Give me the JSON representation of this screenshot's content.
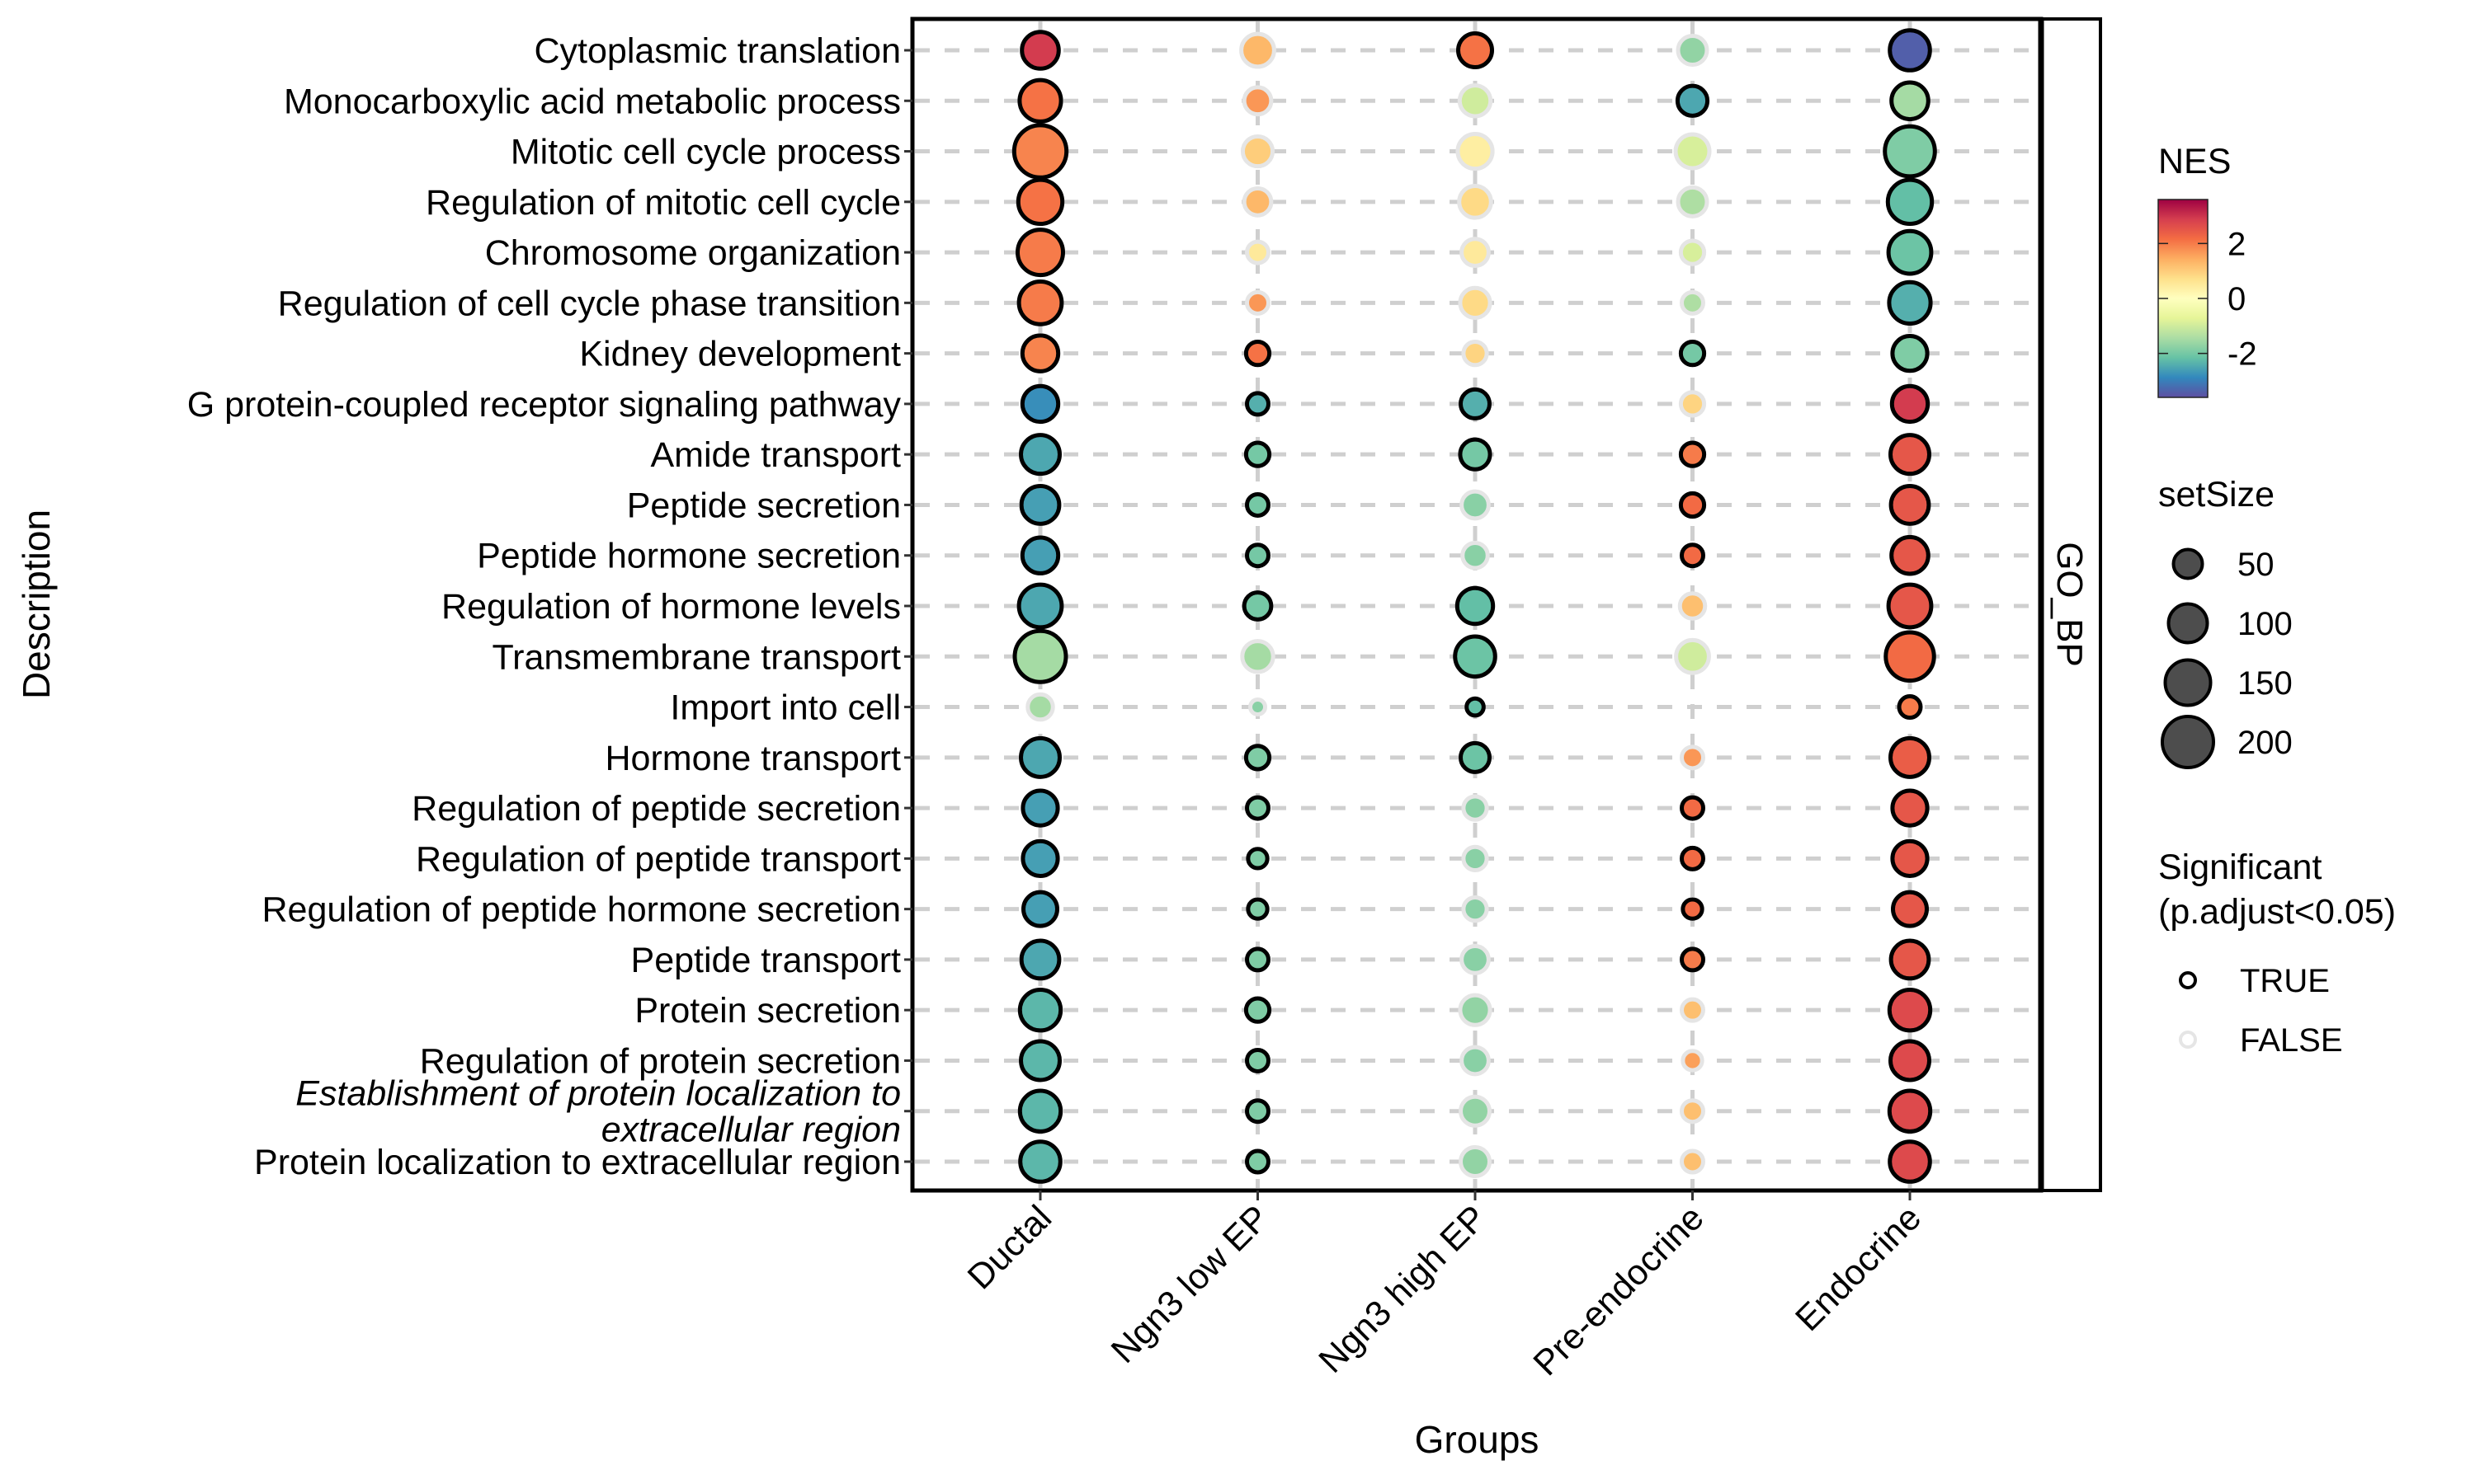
{
  "chart_data": {
    "type": "scatter",
    "subtype": "dot-plot",
    "title": "",
    "xlabel": "Groups",
    "ylabel": "Description",
    "facet_label": "GO_BP",
    "grid": "dashed major gridlines",
    "x_categories": [
      "Ductal",
      "Ngn3 low EP",
      "Ngn3 high EP",
      "Pre-endocrine",
      "Endocrine"
    ],
    "y_categories": [
      {
        "label": "Cytoplasmic translation",
        "italic": false
      },
      {
        "label": "Monocarboxylic acid metabolic process",
        "italic": false
      },
      {
        "label": "Mitotic cell cycle process",
        "italic": false
      },
      {
        "label": "Regulation of mitotic cell cycle",
        "italic": false
      },
      {
        "label": "Chromosome organization",
        "italic": false
      },
      {
        "label": "Regulation of cell cycle phase transition",
        "italic": false
      },
      {
        "label": "Kidney development",
        "italic": false
      },
      {
        "label": "G protein-coupled receptor signaling pathway",
        "italic": false
      },
      {
        "label": "Amide transport",
        "italic": false
      },
      {
        "label": "Peptide secretion",
        "italic": false
      },
      {
        "label": "Peptide hormone secretion",
        "italic": false
      },
      {
        "label": "Regulation of hormone levels",
        "italic": false
      },
      {
        "label": "Transmembrane transport",
        "italic": false
      },
      {
        "label": "Import into cell",
        "italic": false
      },
      {
        "label": "Hormone transport",
        "italic": false
      },
      {
        "label": "Regulation of peptide secretion",
        "italic": false
      },
      {
        "label": "Regulation of peptide transport",
        "italic": false
      },
      {
        "label": "Regulation of peptide hormone secretion",
        "italic": false
      },
      {
        "label": "Peptide transport",
        "italic": false
      },
      {
        "label": "Protein secretion",
        "italic": false
      },
      {
        "label": "Regulation of protein secretion",
        "italic": false
      },
      {
        "label": "Establishment of protein localization to\nextracellular region",
        "italic": true
      },
      {
        "label": "Protein localization to extracellular region",
        "italic": false
      }
    ],
    "color": {
      "variable": "NES",
      "palette": "Spectral (reversed)",
      "range": [
        -3.6,
        3.6
      ],
      "ticks": [
        2,
        0,
        -2
      ],
      "stops": [
        "#9E0142",
        "#D53E4F",
        "#F46D43",
        "#FDAE61",
        "#FEE08B",
        "#FFFFBF",
        "#E6F598",
        "#ABDDA4",
        "#66C2A5",
        "#3288BD",
        "#5E4FA2"
      ]
    },
    "size": {
      "variable": "setSize",
      "breaks": [
        50,
        100,
        150,
        200
      ]
    },
    "significance": {
      "variable": "Significant (p.adjust<0.05)",
      "levels": [
        {
          "label": "TRUE",
          "stroke": "#000000"
        },
        {
          "label": "FALSE",
          "stroke": "#E5E5E5"
        }
      ]
    },
    "points": [
      {
        "row": 0,
        "group": "Ductal",
        "NES": 2.9,
        "setSize": 90,
        "sig": true
      },
      {
        "row": 0,
        "group": "Ngn3 low EP",
        "NES": 1.3,
        "setSize": 70,
        "sig": false
      },
      {
        "row": 0,
        "group": "Ngn3 high EP",
        "NES": 2.1,
        "setSize": 75,
        "sig": true
      },
      {
        "row": 0,
        "group": "Pre-endocrine",
        "NES": -1.7,
        "setSize": 50,
        "sig": false
      },
      {
        "row": 0,
        "group": "Endocrine",
        "NES": -3.4,
        "setSize": 110,
        "sig": true
      },
      {
        "row": 1,
        "group": "Ductal",
        "NES": 2.1,
        "setSize": 120,
        "sig": true
      },
      {
        "row": 1,
        "group": "Ngn3 low EP",
        "NES": 1.7,
        "setSize": 45,
        "sig": false
      },
      {
        "row": 1,
        "group": "Ngn3 high EP",
        "NES": -1.0,
        "setSize": 60,
        "sig": false
      },
      {
        "row": 1,
        "group": "Pre-endocrine",
        "NES": -2.5,
        "setSize": 55,
        "sig": true
      },
      {
        "row": 1,
        "group": "Endocrine",
        "NES": -1.5,
        "setSize": 90,
        "sig": true
      },
      {
        "row": 2,
        "group": "Ductal",
        "NES": 1.9,
        "setSize": 210,
        "sig": true
      },
      {
        "row": 2,
        "group": "Ngn3 low EP",
        "NES": 1.0,
        "setSize": 55,
        "sig": false
      },
      {
        "row": 2,
        "group": "Ngn3 high EP",
        "NES": 0.4,
        "setSize": 80,
        "sig": false
      },
      {
        "row": 2,
        "group": "Pre-endocrine",
        "NES": -0.9,
        "setSize": 75,
        "sig": false
      },
      {
        "row": 2,
        "group": "Endocrine",
        "NES": -1.9,
        "setSize": 190,
        "sig": true
      },
      {
        "row": 3,
        "group": "Ductal",
        "NES": 2.1,
        "setSize": 140,
        "sig": true
      },
      {
        "row": 3,
        "group": "Ngn3 low EP",
        "NES": 1.3,
        "setSize": 45,
        "sig": false
      },
      {
        "row": 3,
        "group": "Ngn3 high EP",
        "NES": 0.8,
        "setSize": 65,
        "sig": false
      },
      {
        "row": 3,
        "group": "Pre-endocrine",
        "NES": -1.4,
        "setSize": 50,
        "sig": false
      },
      {
        "row": 3,
        "group": "Endocrine",
        "NES": -2.2,
        "setSize": 140,
        "sig": true
      },
      {
        "row": 4,
        "group": "Ductal",
        "NES": 2.0,
        "setSize": 150,
        "sig": true
      },
      {
        "row": 4,
        "group": "Ngn3 low EP",
        "NES": 0.5,
        "setSize": 30,
        "sig": false
      },
      {
        "row": 4,
        "group": "Ngn3 high EP",
        "NES": 0.5,
        "setSize": 45,
        "sig": false
      },
      {
        "row": 4,
        "group": "Pre-endocrine",
        "NES": -0.9,
        "setSize": 35,
        "sig": false
      },
      {
        "row": 4,
        "group": "Endocrine",
        "NES": -2.1,
        "setSize": 130,
        "sig": true
      },
      {
        "row": 5,
        "group": "Ductal",
        "NES": 2.0,
        "setSize": 130,
        "sig": true
      },
      {
        "row": 5,
        "group": "Ngn3 low EP",
        "NES": 1.7,
        "setSize": 30,
        "sig": false
      },
      {
        "row": 5,
        "group": "Ngn3 high EP",
        "NES": 0.8,
        "setSize": 55,
        "sig": false
      },
      {
        "row": 5,
        "group": "Pre-endocrine",
        "NES": -1.4,
        "setSize": 30,
        "sig": false
      },
      {
        "row": 5,
        "group": "Endocrine",
        "NES": -2.4,
        "setSize": 120,
        "sig": true
      },
      {
        "row": 6,
        "group": "Ductal",
        "NES": 1.9,
        "setSize": 85,
        "sig": true
      },
      {
        "row": 6,
        "group": "Ngn3 low EP",
        "NES": 2.1,
        "setSize": 35,
        "sig": true
      },
      {
        "row": 6,
        "group": "Ngn3 high EP",
        "NES": 0.9,
        "setSize": 35,
        "sig": false
      },
      {
        "row": 6,
        "group": "Pre-endocrine",
        "NES": -2.0,
        "setSize": 35,
        "sig": true
      },
      {
        "row": 6,
        "group": "Endocrine",
        "NES": -1.9,
        "setSize": 80,
        "sig": true
      },
      {
        "row": 7,
        "group": "Ductal",
        "NES": -2.8,
        "setSize": 85,
        "sig": true
      },
      {
        "row": 7,
        "group": "Ngn3 low EP",
        "NES": -2.4,
        "setSize": 30,
        "sig": true
      },
      {
        "row": 7,
        "group": "Ngn3 high EP",
        "NES": -2.4,
        "setSize": 50,
        "sig": true
      },
      {
        "row": 7,
        "group": "Pre-endocrine",
        "NES": 0.9,
        "setSize": 35,
        "sig": false
      },
      {
        "row": 7,
        "group": "Endocrine",
        "NES": 2.9,
        "setSize": 85,
        "sig": true
      },
      {
        "row": 8,
        "group": "Ductal",
        "NES": -2.5,
        "setSize": 100,
        "sig": true
      },
      {
        "row": 8,
        "group": "Ngn3 low EP",
        "NES": -2.0,
        "setSize": 35,
        "sig": true
      },
      {
        "row": 8,
        "group": "Ngn3 high EP",
        "NES": -2.0,
        "setSize": 55,
        "sig": true
      },
      {
        "row": 8,
        "group": "Pre-endocrine",
        "NES": 2.0,
        "setSize": 35,
        "sig": true
      },
      {
        "row": 8,
        "group": "Endocrine",
        "NES": 2.5,
        "setSize": 100,
        "sig": true
      },
      {
        "row": 9,
        "group": "Ductal",
        "NES": -2.6,
        "setSize": 95,
        "sig": true
      },
      {
        "row": 9,
        "group": "Ngn3 low EP",
        "NES": -2.0,
        "setSize": 30,
        "sig": true
      },
      {
        "row": 9,
        "group": "Ngn3 high EP",
        "NES": -1.8,
        "setSize": 45,
        "sig": false
      },
      {
        "row": 9,
        "group": "Pre-endocrine",
        "NES": 2.2,
        "setSize": 35,
        "sig": true
      },
      {
        "row": 9,
        "group": "Endocrine",
        "NES": 2.5,
        "setSize": 95,
        "sig": true
      },
      {
        "row": 10,
        "group": "Ductal",
        "NES": -2.6,
        "setSize": 85,
        "sig": true
      },
      {
        "row": 10,
        "group": "Ngn3 low EP",
        "NES": -2.0,
        "setSize": 30,
        "sig": true
      },
      {
        "row": 10,
        "group": "Ngn3 high EP",
        "NES": -1.8,
        "setSize": 40,
        "sig": false
      },
      {
        "row": 10,
        "group": "Pre-endocrine",
        "NES": 2.2,
        "setSize": 30,
        "sig": true
      },
      {
        "row": 10,
        "group": "Endocrine",
        "NES": 2.5,
        "setSize": 90,
        "sig": true
      },
      {
        "row": 11,
        "group": "Ductal",
        "NES": -2.5,
        "setSize": 130,
        "sig": true
      },
      {
        "row": 11,
        "group": "Ngn3 low EP",
        "NES": -2.0,
        "setSize": 45,
        "sig": true
      },
      {
        "row": 11,
        "group": "Ngn3 high EP",
        "NES": -2.2,
        "setSize": 85,
        "sig": true
      },
      {
        "row": 11,
        "group": "Pre-endocrine",
        "NES": 1.2,
        "setSize": 40,
        "sig": false
      },
      {
        "row": 11,
        "group": "Endocrine",
        "NES": 2.5,
        "setSize": 130,
        "sig": true
      },
      {
        "row": 12,
        "group": "Ductal",
        "NES": -1.5,
        "setSize": 200,
        "sig": true
      },
      {
        "row": 12,
        "group": "Ngn3 low EP",
        "NES": -1.5,
        "setSize": 60,
        "sig": false
      },
      {
        "row": 12,
        "group": "Ngn3 high EP",
        "NES": -2.1,
        "setSize": 110,
        "sig": true
      },
      {
        "row": 12,
        "group": "Pre-endocrine",
        "NES": -1.0,
        "setSize": 70,
        "sig": false
      },
      {
        "row": 12,
        "group": "Endocrine",
        "NES": 2.2,
        "setSize": 175,
        "sig": true
      },
      {
        "row": 13,
        "group": "Ductal",
        "NES": -1.5,
        "setSize": 40,
        "sig": false
      },
      {
        "row": 13,
        "group": "Ngn3 low EP",
        "NES": -1.8,
        "setSize": 15,
        "sig": false
      },
      {
        "row": 13,
        "group": "Ngn3 high EP",
        "NES": -2.2,
        "setSize": 20,
        "sig": true
      },
      {
        "row": 13,
        "group": "Endocrine",
        "NES": 2.0,
        "setSize": 30,
        "sig": true
      },
      {
        "row": 14,
        "group": "Ductal",
        "NES": -2.5,
        "setSize": 100,
        "sig": true
      },
      {
        "row": 14,
        "group": "Ngn3 low EP",
        "NES": -1.9,
        "setSize": 35,
        "sig": true
      },
      {
        "row": 14,
        "group": "Ngn3 high EP",
        "NES": -2.1,
        "setSize": 50,
        "sig": true
      },
      {
        "row": 14,
        "group": "Pre-endocrine",
        "NES": 1.7,
        "setSize": 30,
        "sig": false
      },
      {
        "row": 14,
        "group": "Endocrine",
        "NES": 2.4,
        "setSize": 100,
        "sig": true
      },
      {
        "row": 15,
        "group": "Ductal",
        "NES": -2.6,
        "setSize": 80,
        "sig": true
      },
      {
        "row": 15,
        "group": "Ngn3 low EP",
        "NES": -1.9,
        "setSize": 30,
        "sig": true
      },
      {
        "row": 15,
        "group": "Ngn3 high EP",
        "NES": -1.8,
        "setSize": 35,
        "sig": false
      },
      {
        "row": 15,
        "group": "Pre-endocrine",
        "NES": 2.2,
        "setSize": 30,
        "sig": true
      },
      {
        "row": 15,
        "group": "Endocrine",
        "NES": 2.5,
        "setSize": 80,
        "sig": true
      },
      {
        "row": 16,
        "group": "Ductal",
        "NES": -2.6,
        "setSize": 80,
        "sig": true
      },
      {
        "row": 16,
        "group": "Ngn3 low EP",
        "NES": -1.9,
        "setSize": 25,
        "sig": true
      },
      {
        "row": 16,
        "group": "Ngn3 high EP",
        "NES": -1.8,
        "setSize": 35,
        "sig": false
      },
      {
        "row": 16,
        "group": "Pre-endocrine",
        "NES": 2.2,
        "setSize": 30,
        "sig": true
      },
      {
        "row": 16,
        "group": "Endocrine",
        "NES": 2.5,
        "setSize": 80,
        "sig": true
      },
      {
        "row": 17,
        "group": "Ductal",
        "NES": -2.6,
        "setSize": 75,
        "sig": true
      },
      {
        "row": 17,
        "group": "Ngn3 low EP",
        "NES": -1.9,
        "setSize": 25,
        "sig": true
      },
      {
        "row": 17,
        "group": "Ngn3 high EP",
        "NES": -1.8,
        "setSize": 35,
        "sig": false
      },
      {
        "row": 17,
        "group": "Pre-endocrine",
        "NES": 2.2,
        "setSize": 25,
        "sig": true
      },
      {
        "row": 17,
        "group": "Endocrine",
        "NES": 2.5,
        "setSize": 75,
        "sig": true
      },
      {
        "row": 18,
        "group": "Ductal",
        "NES": -2.5,
        "setSize": 95,
        "sig": true
      },
      {
        "row": 18,
        "group": "Ngn3 low EP",
        "NES": -1.9,
        "setSize": 30,
        "sig": true
      },
      {
        "row": 18,
        "group": "Ngn3 high EP",
        "NES": -1.8,
        "setSize": 45,
        "sig": false
      },
      {
        "row": 18,
        "group": "Pre-endocrine",
        "NES": 2.0,
        "setSize": 30,
        "sig": true
      },
      {
        "row": 18,
        "group": "Endocrine",
        "NES": 2.5,
        "setSize": 95,
        "sig": true
      },
      {
        "row": 19,
        "group": "Ductal",
        "NES": -2.3,
        "setSize": 115,
        "sig": true
      },
      {
        "row": 19,
        "group": "Ngn3 low EP",
        "NES": -1.9,
        "setSize": 35,
        "sig": true
      },
      {
        "row": 19,
        "group": "Ngn3 high EP",
        "NES": -1.7,
        "setSize": 55,
        "sig": false
      },
      {
        "row": 19,
        "group": "Pre-endocrine",
        "NES": 1.2,
        "setSize": 30,
        "sig": false
      },
      {
        "row": 19,
        "group": "Endocrine",
        "NES": 2.7,
        "setSize": 115,
        "sig": true
      },
      {
        "row": 20,
        "group": "Ductal",
        "NES": -2.3,
        "setSize": 100,
        "sig": true
      },
      {
        "row": 20,
        "group": "Ngn3 low EP",
        "NES": -1.9,
        "setSize": 30,
        "sig": true
      },
      {
        "row": 20,
        "group": "Ngn3 high EP",
        "NES": -1.8,
        "setSize": 45,
        "sig": false
      },
      {
        "row": 20,
        "group": "Pre-endocrine",
        "NES": 1.6,
        "setSize": 25,
        "sig": false
      },
      {
        "row": 20,
        "group": "Endocrine",
        "NES": 2.7,
        "setSize": 100,
        "sig": true
      },
      {
        "row": 21,
        "group": "Ductal",
        "NES": -2.3,
        "setSize": 115,
        "sig": true
      },
      {
        "row": 21,
        "group": "Ngn3 low EP",
        "NES": -1.9,
        "setSize": 30,
        "sig": true
      },
      {
        "row": 21,
        "group": "Ngn3 high EP",
        "NES": -1.7,
        "setSize": 50,
        "sig": false
      },
      {
        "row": 21,
        "group": "Pre-endocrine",
        "NES": 1.2,
        "setSize": 30,
        "sig": false
      },
      {
        "row": 21,
        "group": "Endocrine",
        "NES": 2.7,
        "setSize": 115,
        "sig": true
      },
      {
        "row": 22,
        "group": "Ductal",
        "NES": -2.3,
        "setSize": 110,
        "sig": true
      },
      {
        "row": 22,
        "group": "Ngn3 low EP",
        "NES": -1.9,
        "setSize": 30,
        "sig": true
      },
      {
        "row": 22,
        "group": "Ngn3 high EP",
        "NES": -1.7,
        "setSize": 50,
        "sig": false
      },
      {
        "row": 22,
        "group": "Pre-endocrine",
        "NES": 1.2,
        "setSize": 30,
        "sig": false
      },
      {
        "row": 22,
        "group": "Endocrine",
        "NES": 2.7,
        "setSize": 110,
        "sig": true
      }
    ]
  },
  "legend": {
    "nes_title": "NES",
    "nes_ticks": [
      "2",
      "0",
      "-2"
    ],
    "size_title": "setSize",
    "size_labels": [
      "50",
      "100",
      "150",
      "200"
    ],
    "sig_title_line1": "Significant",
    "sig_title_line2": "(p.adjust<0.05)",
    "sig_labels": [
      "TRUE",
      "FALSE"
    ]
  }
}
